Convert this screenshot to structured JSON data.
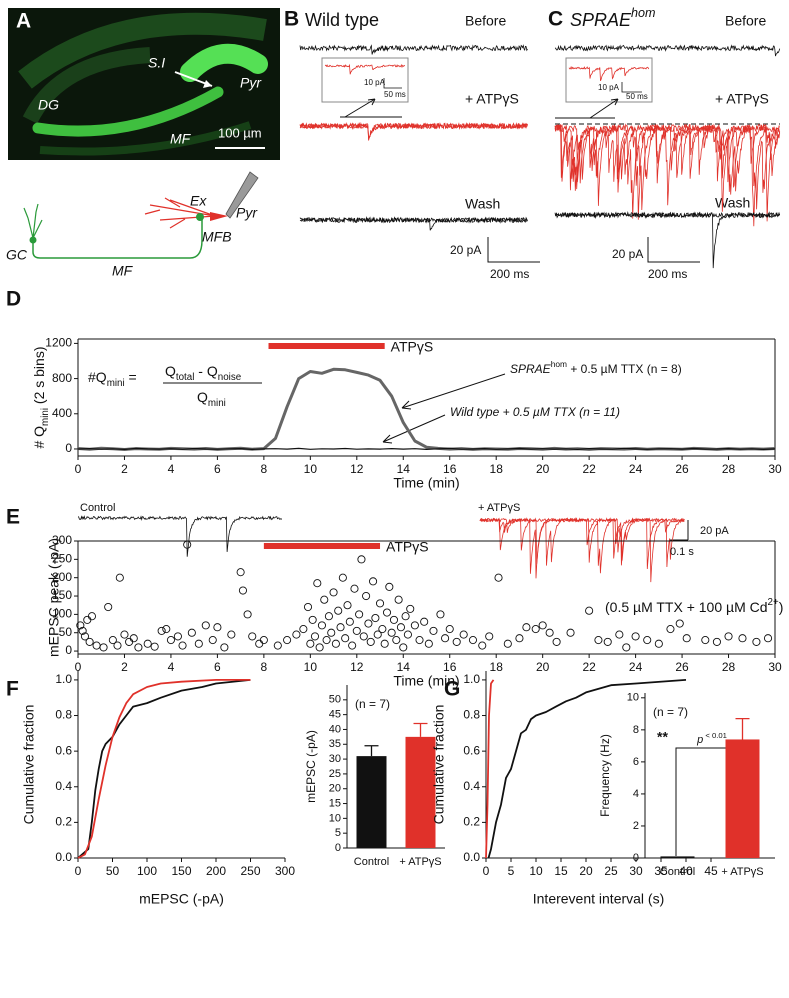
{
  "panel_labels": [
    "A",
    "B",
    "C",
    "D",
    "E",
    "F",
    "G"
  ],
  "micrograph": {
    "labels": [
      "S.I",
      "Pyr",
      "DG",
      "MF"
    ],
    "scale_bar": "100 µm"
  },
  "schematic": {
    "labels": [
      "Ex",
      "Pyr",
      "MFB",
      "GC",
      "MF"
    ]
  },
  "panel_b": {
    "title": "Wild type",
    "before": "Before",
    "drug": "+ ATPγS",
    "wash": "Wash",
    "scale_y": "20 pA",
    "scale_x": "200 ms",
    "inset_y": "10 pA",
    "inset_x": "50 ms"
  },
  "panel_c": {
    "title": [
      "SPRAE",
      "hom"
    ],
    "before": "Before",
    "drug": "+ ATPγS",
    "wash": "Wash",
    "scale_y": "20 pA",
    "scale_x": "200 ms",
    "inset_y": "10 pA",
    "inset_x": "50 ms"
  },
  "chart_data": [
    {
      "type": "line",
      "xlim": [
        0,
        30
      ],
      "ylim": [
        -80,
        1250
      ],
      "xticks": [
        0,
        2,
        4,
        6,
        8,
        10,
        12,
        14,
        16,
        18,
        20,
        22,
        24,
        26,
        28,
        30
      ],
      "yticks": [
        0,
        400,
        800,
        1200
      ],
      "xlabel": "Time (min)",
      "ylabel": [
        "# Q",
        "mini",
        " (2 s bins)"
      ],
      "x": [
        0,
        0.5,
        1,
        1.5,
        2,
        2.5,
        3,
        3.5,
        4,
        4.5,
        5,
        5.5,
        6,
        6.5,
        7,
        7.5,
        8,
        8.5,
        9,
        9.5,
        10,
        10.5,
        11,
        11.5,
        12,
        12.5,
        13,
        13.5,
        14,
        14.5,
        15,
        15.5,
        16,
        16.5,
        17,
        17.5,
        18,
        18.5,
        19,
        19.5,
        20,
        20.5,
        21,
        21.5,
        22,
        22.5,
        23,
        23.5,
        24,
        24.5,
        25,
        25.5,
        26,
        26.5,
        27,
        27.5,
        28,
        28.5,
        29,
        29.5,
        30
      ],
      "series": [
        {
          "color": "#666666",
          "values": [
            5,
            -3,
            8,
            2,
            -6,
            4,
            0,
            -4,
            6,
            3,
            -2,
            5,
            -5,
            2,
            7,
            -3,
            4,
            120,
            480,
            800,
            880,
            860,
            905,
            900,
            870,
            840,
            780,
            600,
            300,
            90,
            20,
            6,
            -2,
            4,
            -5,
            3,
            0,
            -4,
            5,
            2,
            -3,
            6,
            -1,
            3,
            -5,
            4,
            1,
            -2,
            5,
            -4,
            3,
            0,
            -3,
            6,
            2,
            -5,
            4,
            -1,
            3,
            -2,
            5
          ]
        },
        {
          "color": "#111111",
          "values": [
            0,
            4,
            -3,
            2,
            -5,
            6,
            1,
            -2,
            3,
            -4,
            5,
            0,
            -3,
            2,
            4,
            -5,
            1,
            3,
            -2,
            6,
            -4,
            2,
            0,
            5,
            -3,
            1,
            -1,
            4,
            -2,
            3,
            -5,
            2,
            6,
            -3,
            0,
            4,
            -4,
            1,
            5,
            -2,
            3,
            -1,
            2,
            -5,
            4,
            0,
            -3,
            6,
            1,
            -4,
            2,
            3,
            -2,
            5,
            -1,
            0,
            4,
            -3,
            2,
            -5,
            1
          ]
        }
      ],
      "treatment": {
        "label": "ATPγS",
        "start": 8.2,
        "end": 13.2,
        "color": "#e0312a"
      },
      "formula": {
        "lhs": [
          "#Q",
          "mini",
          " = "
        ],
        "numerator": [
          "Q",
          "total",
          " - Q",
          "noise"
        ],
        "denominator": [
          "Q",
          "mini"
        ]
      },
      "annotations": [
        [
          "SPRAE",
          "hom",
          " + 0.5 µM TTX (n = 8)"
        ],
        [
          "Wild type + 0.5 µM TTX (n = 11)"
        ]
      ]
    },
    {
      "type": "scatter",
      "xlim": [
        0,
        30
      ],
      "ylim": [
        -8,
        300
      ],
      "xticks": [
        0,
        2,
        4,
        6,
        8,
        10,
        12,
        14,
        16,
        18,
        20,
        22,
        24,
        26,
        28,
        30
      ],
      "yticks": [
        0,
        50,
        100,
        150,
        200,
        250,
        300
      ],
      "xlabel": "Time (min)",
      "ylabel": "mEPSC peak (-pA)",
      "x": [
        0.1,
        0.2,
        0.3,
        0.4,
        0.5,
        0.6,
        0.8,
        1.1,
        1.3,
        1.5,
        1.7,
        1.8,
        2.0,
        2.2,
        2.4,
        2.6,
        3.0,
        3.3,
        3.6,
        3.8,
        4.0,
        4.3,
        4.5,
        4.7,
        4.9,
        5.2,
        5.5,
        5.8,
        6.0,
        6.3,
        6.6,
        7.0,
        7.1,
        7.3,
        7.5,
        7.8,
        8.0,
        8.6,
        9.0,
        9.4,
        9.7,
        9.9,
        10.0,
        10.1,
        10.2,
        10.3,
        10.4,
        10.5,
        10.6,
        10.7,
        10.8,
        10.9,
        11.0,
        11.1,
        11.2,
        11.3,
        11.4,
        11.5,
        11.6,
        11.7,
        11.8,
        11.9,
        12.0,
        12.1,
        12.2,
        12.3,
        12.4,
        12.5,
        12.6,
        12.7,
        12.8,
        12.9,
        13.0,
        13.1,
        13.2,
        13.3,
        13.4,
        13.5,
        13.6,
        13.7,
        13.8,
        13.9,
        14.0,
        14.1,
        14.2,
        14.3,
        14.5,
        14.7,
        14.9,
        15.1,
        15.3,
        15.6,
        15.8,
        16.0,
        16.3,
        16.6,
        17.0,
        17.4,
        17.7,
        18.1,
        18.5,
        19.0,
        19.3,
        19.7,
        20.0,
        20.3,
        20.6,
        21.2,
        22.0,
        22.4,
        22.8,
        23.3,
        23.6,
        24.0,
        24.5,
        25.0,
        25.5,
        25.9,
        26.2,
        27.0,
        27.5,
        28.0,
        28.6,
        29.2,
        29.7
      ],
      "values": [
        70,
        55,
        40,
        85,
        25,
        95,
        15,
        10,
        120,
        30,
        15,
        200,
        45,
        25,
        35,
        10,
        20,
        12,
        55,
        60,
        30,
        40,
        15,
        290,
        50,
        20,
        70,
        30,
        65,
        10,
        45,
        215,
        165,
        100,
        40,
        20,
        30,
        15,
        30,
        45,
        60,
        120,
        20,
        85,
        40,
        185,
        10,
        70,
        140,
        30,
        95,
        50,
        160,
        20,
        110,
        65,
        200,
        35,
        125,
        80,
        15,
        170,
        55,
        100,
        250,
        40,
        150,
        75,
        25,
        190,
        90,
        45,
        130,
        60,
        20,
        105,
        175,
        50,
        85,
        30,
        140,
        65,
        10,
        95,
        45,
        115,
        70,
        30,
        80,
        20,
        55,
        100,
        35,
        60,
        25,
        45,
        30,
        15,
        40,
        200,
        20,
        35,
        65,
        60,
        70,
        50,
        25,
        50,
        110,
        30,
        25,
        45,
        10,
        40,
        30,
        20,
        60,
        75,
        35,
        30,
        25,
        40,
        35,
        25,
        35
      ],
      "treatment": {
        "label": "ATPγS",
        "start": 8,
        "end": 13,
        "color": "#e0312a"
      },
      "annotation": [
        "(0.5 µM TTX + 100 µM Cd",
        "2+",
        ")"
      ],
      "insets": {
        "control": "Control",
        "drug": "+ ATPγS",
        "scale_x": "0.1 s",
        "scale_y": "20 pA"
      }
    },
    {
      "type": "line",
      "xlim": [
        0,
        300
      ],
      "ylim": [
        0,
        1.05
      ],
      "xticks": [
        0,
        50,
        100,
        150,
        200,
        250,
        300
      ],
      "yticks": [
        {
          "value": 0,
          "label": "0.0"
        },
        0.2,
        0.4,
        0.6,
        0.8,
        {
          "value": 1,
          "label": "1.0"
        }
      ],
      "xlabel": "mEPSC (-pA)",
      "ylabel": "Cumulative fraction",
      "series": [
        {
          "color": "#111111",
          "x": [
            0,
            15,
            20,
            25,
            30,
            35,
            40,
            50,
            60,
            70,
            80,
            100,
            120,
            150,
            180,
            200,
            250
          ],
          "values": [
            0,
            0.05,
            0.2,
            0.38,
            0.5,
            0.6,
            0.64,
            0.68,
            0.75,
            0.8,
            0.85,
            0.87,
            0.9,
            0.94,
            0.96,
            0.98,
            1.0
          ]
        },
        {
          "color": "#e0312a",
          "x": [
            0,
            10,
            20,
            30,
            40,
            50,
            60,
            70,
            80,
            100,
            120,
            150,
            200,
            250
          ],
          "values": [
            0,
            0.02,
            0.12,
            0.33,
            0.52,
            0.68,
            0.79,
            0.87,
            0.92,
            0.96,
            0.98,
            0.99,
            1.0,
            1.0
          ]
        }
      ]
    },
    {
      "type": "bar",
      "categories": [
        "Control",
        "+ ATPγS"
      ],
      "values": [
        31,
        37.5
      ],
      "errors": [
        3.5,
        4.5
      ],
      "colors": [
        "#111111",
        "#e0312a"
      ],
      "ylim": [
        0,
        55
      ],
      "yticks": [
        0,
        5,
        10,
        15,
        20,
        25,
        30,
        35,
        40,
        45,
        50
      ],
      "ylabel": "mEPSC (-pA)",
      "annotations": [
        "(n = 7)"
      ]
    },
    {
      "type": "line",
      "xlim": [
        0,
        45
      ],
      "ylim": [
        0,
        1.05
      ],
      "xticks": [
        0,
        5,
        10,
        15,
        20,
        25,
        30,
        35,
        40,
        45
      ],
      "yticks": [
        {
          "value": 0,
          "label": "0.0"
        },
        0.2,
        0.4,
        0.6,
        0.8,
        {
          "value": 1,
          "label": "1.0"
        }
      ],
      "xlabel": "Interevent interval (s)",
      "ylabel": "Cumulative fraction",
      "series": [
        {
          "color": "#111111",
          "x": [
            0.5,
            1,
            2,
            3,
            4,
            5,
            6,
            7,
            8,
            9,
            10,
            12,
            14,
            16,
            18,
            20,
            25,
            30,
            40
          ],
          "values": [
            0,
            0.05,
            0.2,
            0.3,
            0.45,
            0.5,
            0.6,
            0.7,
            0.72,
            0.78,
            0.8,
            0.82,
            0.85,
            0.88,
            0.9,
            0.93,
            0.97,
            0.98,
            1.0
          ]
        },
        {
          "color": "#e0312a",
          "x": [
            0,
            0.3,
            0.6,
            1,
            1.5
          ],
          "values": [
            0,
            0.3,
            0.8,
            0.98,
            1.0
          ]
        }
      ]
    },
    {
      "type": "bar",
      "categories": [
        "Control",
        "+ ATPγS"
      ],
      "values": [
        0.1,
        7.4
      ],
      "errors": [
        null,
        1.3
      ],
      "colors": [
        "#111111",
        "#e0312a"
      ],
      "ylim": [
        0,
        10.3
      ],
      "yticks": [
        0,
        2,
        4,
        6,
        8,
        10
      ],
      "ylabel": "Frequency (Hz)",
      "annotations": [
        "(n = 7)",
        "**"
      ],
      "significance": [
        "p",
        " < 0.01"
      ]
    }
  ]
}
